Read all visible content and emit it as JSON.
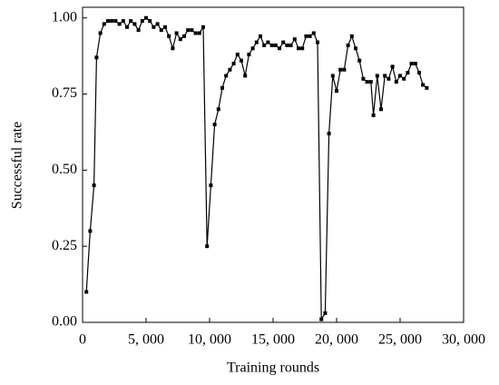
{
  "chart_data": {
    "type": "line",
    "x_label": "Training rounds",
    "y_label": "Successful rate",
    "color": "#000000",
    "x": [
      300,
      600,
      900,
      1100,
      1400,
      1700,
      2000,
      2300,
      2600,
      2900,
      3200,
      3500,
      3800,
      4100,
      4400,
      4700,
      5000,
      5300,
      5600,
      5900,
      6200,
      6500,
      6800,
      7100,
      7400,
      7700,
      8000,
      8300,
      8600,
      8900,
      9200,
      9500,
      9800,
      10100,
      10400,
      10700,
      11000,
      11300,
      11600,
      11900,
      12200,
      12500,
      12800,
      13100,
      13400,
      13700,
      14000,
      14300,
      14600,
      14900,
      15200,
      15500,
      15800,
      16100,
      16400,
      16700,
      17000,
      17300,
      17600,
      17900,
      18200,
      18500,
      18800,
      19100,
      19400,
      19700,
      20000,
      20300,
      20600,
      20900,
      21200,
      21500,
      21800,
      22100,
      22400,
      22700,
      22900,
      23200,
      23500,
      23800,
      24100,
      24400,
      24700,
      25000,
      25300,
      25600,
      25900,
      26200,
      26500,
      26800,
      27100
    ],
    "values": [
      0.1,
      0.3,
      0.45,
      0.87,
      0.95,
      0.98,
      0.99,
      0.99,
      0.99,
      0.98,
      0.99,
      0.97,
      0.99,
      0.98,
      0.96,
      0.99,
      1.0,
      0.99,
      0.97,
      0.98,
      0.96,
      0.97,
      0.94,
      0.9,
      0.95,
      0.93,
      0.94,
      0.96,
      0.96,
      0.95,
      0.95,
      0.97,
      0.25,
      0.45,
      0.65,
      0.7,
      0.77,
      0.81,
      0.83,
      0.85,
      0.88,
      0.86,
      0.81,
      0.88,
      0.9,
      0.92,
      0.94,
      0.91,
      0.92,
      0.91,
      0.91,
      0.9,
      0.92,
      0.91,
      0.91,
      0.93,
      0.9,
      0.9,
      0.94,
      0.94,
      0.95,
      0.92,
      0.01,
      0.03,
      0.62,
      0.81,
      0.76,
      0.83,
      0.83,
      0.91,
      0.94,
      0.9,
      0.86,
      0.8,
      0.79,
      0.79,
      0.68,
      0.81,
      0.7,
      0.81,
      0.8,
      0.84,
      0.79,
      0.81,
      0.8,
      0.82,
      0.85,
      0.85,
      0.82,
      0.78,
      0.77
    ],
    "xlim": [
      0,
      30000
    ],
    "ylim": [
      0,
      1.035
    ],
    "xticks": [
      0,
      {
        "value": 5000,
        "label": "5, 000"
      },
      {
        "value": 10000,
        "label": "10, 000"
      },
      {
        "value": 15000,
        "label": "15, 000"
      },
      {
        "value": 20000,
        "label": "20, 000"
      },
      {
        "value": 25000,
        "label": "25, 000"
      },
      {
        "value": 30000,
        "label": "30, 000"
      }
    ],
    "yticks": [
      {
        "value": 0,
        "label": "0.00"
      },
      {
        "value": 0.25,
        "label": "0.25"
      },
      {
        "value": 0.5,
        "label": "0.50"
      },
      {
        "value": 0.75,
        "label": "0.75"
      },
      {
        "value": 1,
        "label": "1.00"
      }
    ]
  }
}
